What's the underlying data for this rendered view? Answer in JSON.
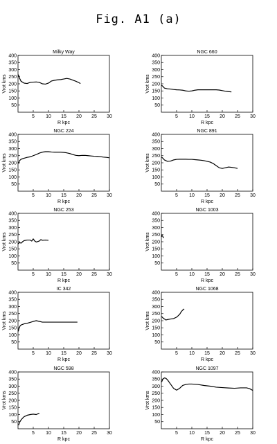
{
  "figure": {
    "title": "Fig. A1 (a)"
  },
  "chart_data": [
    {
      "type": "line",
      "title": "Milky Way",
      "xlabel": "R kpc",
      "ylabel": "Vrot kms",
      "xlim": [
        0,
        30
      ],
      "ylim": [
        0,
        400
      ],
      "xticks": [
        5,
        10,
        15,
        20,
        25,
        30
      ],
      "yticks": [
        50,
        100,
        150,
        200,
        250,
        300,
        350,
        400
      ],
      "series": [
        {
          "x": [
            0.1,
            0.5,
            1,
            2,
            3,
            4,
            5,
            6,
            7,
            8,
            9,
            10,
            11,
            12,
            13,
            14,
            15,
            16,
            17,
            18,
            19,
            20,
            20.5
          ],
          "y": [
            265,
            240,
            218,
            205,
            202,
            210,
            212,
            213,
            210,
            200,
            198,
            205,
            220,
            225,
            228,
            230,
            234,
            238,
            234,
            226,
            218,
            208,
            202
          ]
        }
      ]
    },
    {
      "type": "line",
      "title": "NGC 660",
      "xlabel": "R kpc",
      "ylabel": "Vrot kms",
      "xlim": [
        0,
        30
      ],
      "ylim": [
        0,
        400
      ],
      "xticks": [
        5,
        10,
        15,
        20,
        25,
        30
      ],
      "yticks": [
        50,
        100,
        150,
        200,
        250,
        300,
        350,
        400
      ],
      "series": [
        {
          "x": [
            0.1,
            0.5,
            1,
            2,
            3,
            4,
            5,
            6,
            7,
            8,
            9,
            10,
            11,
            12,
            13,
            14,
            15,
            16,
            17,
            18,
            19,
            20,
            21,
            22,
            23
          ],
          "y": [
            190,
            182,
            170,
            165,
            163,
            160,
            158,
            157,
            155,
            150,
            148,
            150,
            155,
            158,
            158,
            158,
            158,
            158,
            158,
            158,
            156,
            152,
            148,
            145,
            143
          ]
        }
      ]
    },
    {
      "type": "line",
      "title": "NGC 224",
      "xlabel": "R kpc",
      "ylabel": "Vrot kms",
      "xlim": [
        0,
        30
      ],
      "ylim": [
        0,
        400
      ],
      "xticks": [
        5,
        10,
        15,
        20,
        25,
        30
      ],
      "yticks": [
        50,
        100,
        150,
        200,
        250,
        300,
        350,
        400
      ],
      "series": [
        {
          "x": [
            0.1,
            0.5,
            1,
            2,
            3,
            4,
            5,
            6,
            7,
            8,
            9,
            10,
            11,
            12,
            13,
            14,
            15,
            16,
            17,
            18,
            19,
            20,
            21,
            22,
            23,
            24,
            25,
            26,
            27,
            28,
            29,
            30
          ],
          "y": [
            195,
            215,
            225,
            232,
            238,
            242,
            250,
            258,
            268,
            275,
            278,
            278,
            276,
            275,
            275,
            275,
            273,
            270,
            265,
            258,
            252,
            250,
            252,
            252,
            250,
            248,
            246,
            245,
            243,
            240,
            238,
            235
          ]
        }
      ]
    },
    {
      "type": "line",
      "title": "NGC 891",
      "xlabel": "R kpc",
      "ylabel": "Vrot kms",
      "xlim": [
        0,
        30
      ],
      "ylim": [
        0,
        400
      ],
      "xticks": [
        5,
        10,
        15,
        20,
        25,
        30
      ],
      "yticks": [
        50,
        100,
        150,
        200,
        250,
        300,
        350,
        400
      ],
      "series": [
        {
          "x": [
            0.1,
            0.5,
            1,
            2,
            3,
            4,
            5,
            6,
            7,
            8,
            9,
            10,
            11,
            12,
            13,
            14,
            15,
            16,
            17,
            18,
            19,
            20,
            21,
            22,
            23,
            24,
            25
          ],
          "y": [
            240,
            232,
            220,
            210,
            212,
            220,
            224,
            225,
            225,
            225,
            224,
            224,
            222,
            220,
            218,
            215,
            210,
            205,
            195,
            180,
            165,
            160,
            165,
            170,
            168,
            165,
            160
          ]
        }
      ]
    },
    {
      "type": "line",
      "title": "NGC 253",
      "xlabel": "R kpc",
      "ylabel": "Vrot kms",
      "xlim": [
        0,
        30
      ],
      "ylim": [
        0,
        400
      ],
      "xticks": [
        5,
        10,
        15,
        20,
        25,
        30
      ],
      "yticks": [
        50,
        100,
        150,
        200,
        250,
        300,
        350,
        400
      ],
      "series": [
        {
          "x": [
            0.1,
            0.5,
            1,
            1.5,
            2,
            3,
            4,
            4.5,
            5,
            5.5,
            6,
            7,
            7.5,
            8,
            9,
            10
          ],
          "y": [
            185,
            195,
            190,
            200,
            208,
            212,
            212,
            205,
            220,
            205,
            198,
            205,
            215,
            210,
            212,
            210
          ]
        }
      ]
    },
    {
      "type": "line",
      "title": "NGC 1003",
      "xlabel": "R kpc",
      "ylabel": "Vrot kms",
      "xlim": [
        0,
        30
      ],
      "ylim": [
        0,
        400
      ],
      "xticks": [
        5,
        10,
        15,
        20,
        25,
        30
      ],
      "yticks": [
        50,
        100,
        150,
        200,
        250,
        300,
        350,
        400
      ],
      "series": [
        {
          "x": [
            0.05,
            0.2,
            0.4,
            0.6,
            0.8
          ],
          "y": [
            235,
            245,
            240,
            232,
            228
          ]
        }
      ]
    },
    {
      "type": "line",
      "title": "IC 342",
      "xlabel": "R kpc",
      "ylabel": "Vrot kms",
      "xlim": [
        0,
        30
      ],
      "ylim": [
        0,
        400
      ],
      "xticks": [
        5,
        10,
        15,
        20,
        25,
        30
      ],
      "yticks": [
        50,
        100,
        150,
        200,
        250,
        300,
        350,
        400
      ],
      "series": [
        {
          "x": [
            0.1,
            0.3,
            0.6,
            1,
            2,
            3,
            4,
            5,
            6,
            7,
            8,
            10,
            12,
            14,
            16,
            18,
            19.5
          ],
          "y": [
            125,
            145,
            160,
            170,
            178,
            182,
            188,
            195,
            200,
            195,
            190,
            190,
            190,
            190,
            190,
            190,
            190
          ]
        }
      ]
    },
    {
      "type": "line",
      "title": "NGC 1068",
      "xlabel": "R kpc",
      "ylabel": "Vrot kms",
      "xlim": [
        0,
        30
      ],
      "ylim": [
        0,
        400
      ],
      "xticks": [
        5,
        10,
        15,
        20,
        25,
        30
      ],
      "yticks": [
        50,
        100,
        150,
        200,
        250,
        300,
        350,
        400
      ],
      "series": [
        {
          "x": [
            0.1,
            0.5,
            1,
            1.5,
            2,
            3,
            4,
            5,
            6,
            6.5,
            7,
            7.5
          ],
          "y": [
            230,
            220,
            212,
            205,
            208,
            212,
            215,
            225,
            245,
            262,
            275,
            283
          ]
        }
      ]
    },
    {
      "type": "line",
      "title": "NGC 598",
      "xlabel": "R kpc",
      "ylabel": "Vrot kms",
      "xlim": [
        0,
        30
      ],
      "ylim": [
        0,
        400
      ],
      "xticks": [
        5,
        10,
        15,
        20,
        25,
        30
      ],
      "yticks": [
        50,
        100,
        150,
        200,
        250,
        300,
        350,
        400
      ],
      "series": [
        {
          "x": [
            0.2,
            0.5,
            1,
            1.5,
            2,
            3,
            4,
            5,
            6,
            7
          ],
          "y": [
            25,
            45,
            62,
            75,
            85,
            95,
            100,
            103,
            100,
            110
          ]
        }
      ]
    },
    {
      "type": "line",
      "title": "NGC 1097",
      "xlabel": "R kpc",
      "ylabel": "Vrot kms",
      "xlim": [
        0,
        30
      ],
      "ylim": [
        0,
        400
      ],
      "xticks": [
        5,
        10,
        15,
        20,
        25,
        30
      ],
      "yticks": [
        50,
        100,
        150,
        200,
        250,
        300,
        350,
        400
      ],
      "series": [
        {
          "x": [
            0.1,
            0.5,
            1,
            1.5,
            2,
            3,
            4,
            5,
            6,
            7,
            8,
            9,
            10,
            12,
            14,
            16,
            18,
            20,
            22,
            24,
            26,
            28,
            29,
            30
          ],
          "y": [
            330,
            350,
            358,
            355,
            345,
            315,
            285,
            272,
            285,
            305,
            312,
            315,
            315,
            312,
            305,
            300,
            293,
            290,
            287,
            285,
            288,
            288,
            282,
            270
          ]
        }
      ]
    }
  ]
}
